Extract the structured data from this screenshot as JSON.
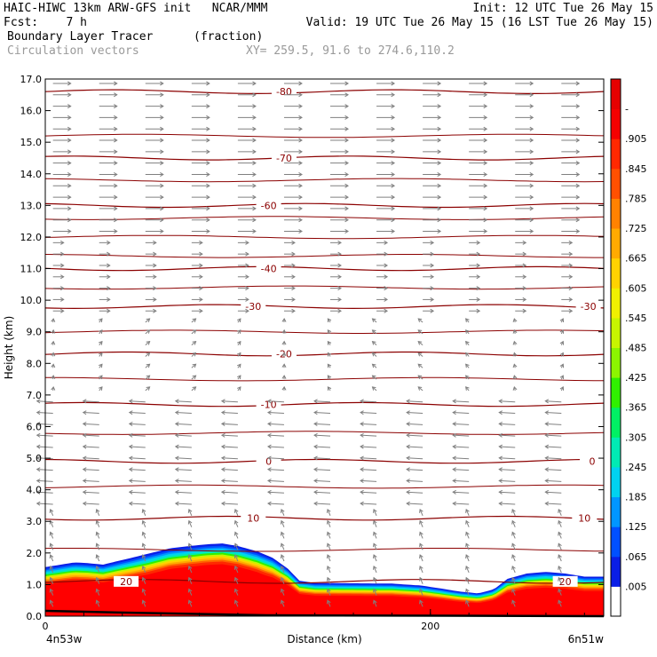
{
  "header": {
    "line1_left": "HAIC-HIWC 13km ARW-GFS init   NCAR/MMM",
    "line1_right": "Init: 12 UTC Tue 26 May 15",
    "line2_left": "Fcst:    7 h",
    "line2_right": "Valid: 19 UTC Tue 26 May 15 (16 LST Tue 26 May 15)",
    "field_name": "Boundary Layer Tracer",
    "field_units": "(fraction)",
    "overlay_name": "Circulation vectors",
    "cross_section": "XY= 259.5, 91.6 to 274.6,110.2"
  },
  "chart_data": {
    "type": "heatmap",
    "title": "Boundary Layer Tracer",
    "xlabel": "Distance (km)",
    "ylabel": "Height (km)",
    "xlim": [
      0,
      290
    ],
    "ylim": [
      0,
      17
    ],
    "x_ticks": [
      0,
      200
    ],
    "y_ticks": [
      "0.0",
      "1.0",
      "2.0",
      "3.0",
      "4.0",
      "5.0",
      "6.0",
      "7.0",
      "8.0",
      "9.0",
      "10.0",
      "11.0",
      "12.0",
      "13.0",
      "14.0",
      "15.0",
      "16.0",
      "17.0"
    ],
    "x_endpoints": {
      "left": "4n53w",
      "right": "6n51w"
    },
    "colorbar": {
      "labels": [
        ".005",
        ".065",
        ".125",
        ".185",
        ".245",
        ".305",
        ".365",
        ".425",
        ".485",
        ".545",
        ".605",
        ".665",
        ".725",
        ".785",
        ".845",
        ".905",
        "-"
      ],
      "colors": [
        "#ffffff",
        "#0a1ee6",
        "#0050ff",
        "#0096ff",
        "#00d2f0",
        "#00ebb4",
        "#00f064",
        "#30f000",
        "#8cf500",
        "#c8f500",
        "#f0f000",
        "#ffd200",
        "#ffaa00",
        "#ff8200",
        "#ff5000",
        "#ff2800",
        "#f50000",
        "#e60000"
      ]
    },
    "tracer_top_km": [
      [
        0,
        1.55
      ],
      [
        8,
        1.63
      ],
      [
        15,
        1.7
      ],
      [
        22,
        1.68
      ],
      [
        30,
        1.63
      ],
      [
        38,
        1.75
      ],
      [
        45,
        1.85
      ],
      [
        55,
        2.0
      ],
      [
        65,
        2.15
      ],
      [
        75,
        2.22
      ],
      [
        85,
        2.28
      ],
      [
        92,
        2.3
      ],
      [
        100,
        2.22
      ],
      [
        110,
        2.05
      ],
      [
        118,
        1.85
      ],
      [
        126,
        1.5
      ],
      [
        132,
        1.12
      ],
      [
        140,
        1.05
      ],
      [
        160,
        1.04
      ],
      [
        180,
        1.03
      ],
      [
        195,
        0.97
      ],
      [
        205,
        0.88
      ],
      [
        215,
        0.78
      ],
      [
        225,
        0.72
      ],
      [
        233,
        0.85
      ],
      [
        240,
        1.18
      ],
      [
        250,
        1.35
      ],
      [
        260,
        1.4
      ],
      [
        270,
        1.35
      ],
      [
        280,
        1.25
      ],
      [
        290,
        1.25
      ]
    ],
    "contours": [
      {
        "label": "-80",
        "y_km": 16.6,
        "label_x_km": 124
      },
      {
        "label": "-70",
        "y_km": 14.5,
        "label_x_km": 124
      },
      {
        "label": "-60",
        "y_km": 13.0,
        "label_x_km": 116
      },
      {
        "label": "-40",
        "y_km": 11.0,
        "label_x_km": 116
      },
      {
        "label": "-30",
        "y_km": 9.8,
        "label_x_km": 108
      },
      {
        "label": "-30",
        "y_km": 9.8,
        "label_x_km": 282
      },
      {
        "label": "-20",
        "y_km": 8.3,
        "label_x_km": 124
      },
      {
        "label": "-10",
        "y_km": 6.7,
        "label_x_km": 116
      },
      {
        "label": "0",
        "y_km": 4.9,
        "label_x_km": 116
      },
      {
        "label": "0",
        "y_km": 4.9,
        "label_x_km": 284
      },
      {
        "label": "10",
        "y_km": 3.1,
        "label_x_km": 108
      },
      {
        "label": "10",
        "y_km": 3.1,
        "label_x_km": 280
      },
      {
        "label": "20",
        "y_km": 1.1,
        "label_x_km": 42
      },
      {
        "label": "20",
        "y_km": 1.1,
        "label_x_km": 270
      }
    ],
    "colors": {
      "contour": "#8b0000",
      "vector": "#808080"
    }
  }
}
